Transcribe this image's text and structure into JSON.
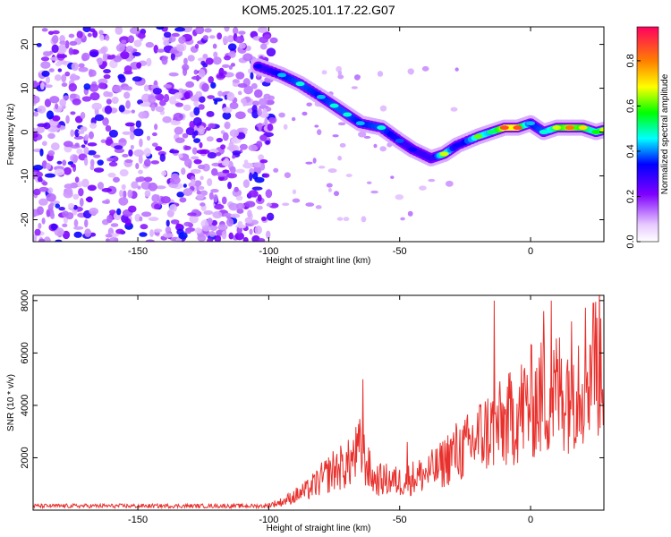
{
  "title": "KOM5.2025.101.17.22.G07",
  "colorbar": {
    "label": "Normalized spectral amplitude",
    "ticks": [
      0.0,
      0.2,
      0.4,
      0.6,
      0.8
    ],
    "tick_labels": [
      "0.0",
      "0.2",
      "0.4",
      "0.6",
      "0.8"
    ],
    "range": [
      0,
      0.95
    ]
  },
  "chart_data": [
    {
      "type": "heatmap",
      "xlabel": "Height of straight line (km)",
      "ylabel": "Frequency (Hz)",
      "xlim": [
        -190,
        28
      ],
      "ylim": [
        -25,
        24
      ],
      "xticks": [
        -150,
        -100,
        -50,
        0
      ],
      "xtick_labels": [
        "-150",
        "-100",
        "-50",
        "0"
      ],
      "yticks": [
        20,
        10,
        0,
        -10,
        -20
      ],
      "ytick_labels": [
        "20",
        "10",
        "0",
        "-10",
        "-20"
      ],
      "grid": false,
      "noise_region": {
        "x_range": [
          -190,
          -98
        ],
        "y_range": [
          -25,
          24
        ],
        "typical_amplitude": 0.3
      },
      "ridge": [
        {
          "x": -104,
          "freq": 15,
          "amp": 0.35
        },
        {
          "x": -95,
          "freq": 13,
          "amp": 0.45
        },
        {
          "x": -88,
          "freq": 11,
          "amp": 0.5
        },
        {
          "x": -80,
          "freq": 8,
          "amp": 0.45
        },
        {
          "x": -75,
          "freq": 6,
          "amp": 0.5
        },
        {
          "x": -70,
          "freq": 4,
          "amp": 0.5
        },
        {
          "x": -65,
          "freq": 2,
          "amp": 0.45
        },
        {
          "x": -57,
          "freq": 1,
          "amp": 0.5
        },
        {
          "x": -50,
          "freq": -2,
          "amp": 0.4
        },
        {
          "x": -45,
          "freq": -4,
          "amp": 0.35
        },
        {
          "x": -38,
          "freq": -6,
          "amp": 0.3
        },
        {
          "x": -33,
          "freq": -5,
          "amp": 0.7
        },
        {
          "x": -28,
          "freq": -3,
          "amp": 0.35
        },
        {
          "x": -20,
          "freq": -1,
          "amp": 0.65
        },
        {
          "x": -15,
          "freq": 0,
          "amp": 0.55
        },
        {
          "x": -10,
          "freq": 1,
          "amp": 0.9
        },
        {
          "x": -5,
          "freq": 1,
          "amp": 0.9
        },
        {
          "x": 0,
          "freq": 2,
          "amp": 0.45
        },
        {
          "x": 5,
          "freq": 0,
          "amp": 0.5
        },
        {
          "x": 10,
          "freq": 1,
          "amp": 0.7
        },
        {
          "x": 15,
          "freq": 1,
          "amp": 0.85
        },
        {
          "x": 20,
          "freq": 1,
          "amp": 0.75
        },
        {
          "x": 25,
          "freq": 0,
          "amp": 0.6
        },
        {
          "x": 28,
          "freq": 0.5,
          "amp": 0.7
        }
      ]
    },
    {
      "type": "line",
      "xlabel": "Height of straight line (km)",
      "ylabel": "SNR (10 * v/v)",
      "xlim": [
        -190,
        28
      ],
      "ylim": [
        0,
        8200
      ],
      "xticks": [
        -150,
        -100,
        -50,
        0
      ],
      "xtick_labels": [
        "-150",
        "-100",
        "-50",
        "0"
      ],
      "yticks": [
        2000,
        4000,
        6000,
        8000
      ],
      "ytick_labels": [
        "2000",
        "4000",
        "6000",
        "8000"
      ],
      "grid": false,
      "line_color": "#e8312d",
      "series": [
        {
          "x": [
            -190,
            -180,
            -170,
            -160,
            -150,
            -140,
            -130,
            -120,
            -110,
            -100,
            -95,
            -90,
            -85,
            -80,
            -75,
            -70,
            -65,
            -60,
            -55,
            -50,
            -45,
            -40,
            -35,
            -30,
            -25,
            -20,
            -15,
            -10,
            -5,
            0,
            5,
            10,
            15,
            20,
            25,
            28
          ],
          "values": [
            200,
            180,
            200,
            220,
            180,
            200,
            190,
            200,
            210,
            250,
            400,
            700,
            1000,
            1500,
            2000,
            2200,
            3000,
            1500,
            1500,
            1400,
            1600,
            1800,
            2100,
            2800,
            3000,
            3600,
            4000,
            4200,
            4800,
            5300,
            5500,
            5800,
            6200,
            6800,
            7400,
            7600
          ]
        }
      ],
      "peaks": [
        {
          "x": -64,
          "value": 5000
        },
        {
          "x": -47,
          "value": 2600
        },
        {
          "x": -14,
          "value": 8000
        },
        {
          "x": 5,
          "value": 7600
        },
        {
          "x": 8,
          "value": 8000
        },
        {
          "x": 24,
          "value": 7900
        }
      ]
    }
  ]
}
